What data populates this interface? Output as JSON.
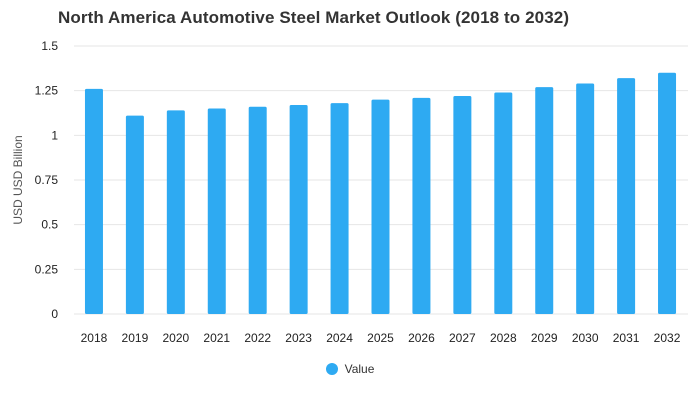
{
  "chart_data": {
    "type": "bar",
    "title": "North America Automotive Steel Market Outlook (2018 to 2032)",
    "xlabel": "",
    "ylabel": "USD USD Billion",
    "categories": [
      "2018",
      "2019",
      "2020",
      "2021",
      "2022",
      "2023",
      "2024",
      "2025",
      "2026",
      "2027",
      "2028",
      "2029",
      "2030",
      "2031",
      "2032"
    ],
    "series": [
      {
        "name": "Value",
        "values": [
          1.26,
          1.11,
          1.14,
          1.15,
          1.16,
          1.17,
          1.18,
          1.2,
          1.21,
          1.22,
          1.24,
          1.27,
          1.29,
          1.32,
          1.35
        ],
        "color": "#2eaaf2"
      }
    ],
    "ylim": [
      0,
      1.5
    ],
    "yticks": [
      {
        "value": 0,
        "label": "0"
      },
      {
        "value": 0.25,
        "label": "0.25"
      },
      {
        "value": 0.5,
        "label": "0.5"
      },
      {
        "value": 0.75,
        "label": "0.75"
      },
      {
        "value": 1,
        "label": "1"
      },
      {
        "value": 1.25,
        "label": "1.25"
      },
      {
        "value": 1.5,
        "label": "1.5"
      }
    ],
    "grid": true,
    "legend_position": "bottom-center",
    "gridline_color": "#e6e6e6"
  }
}
